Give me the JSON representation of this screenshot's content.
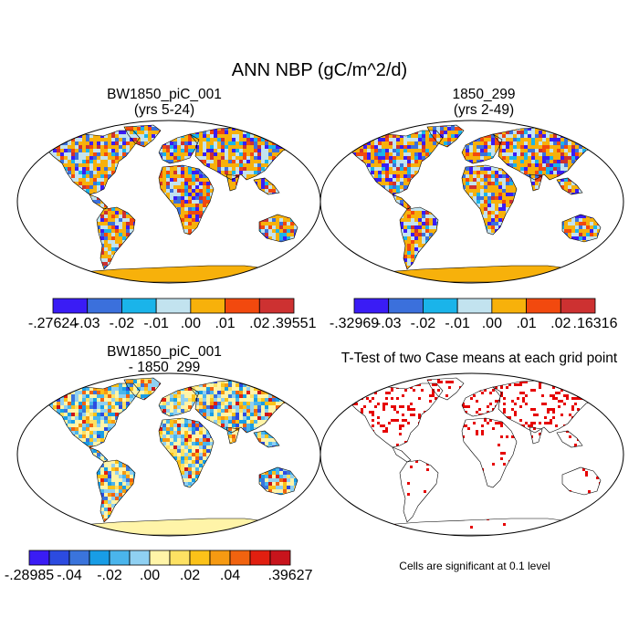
{
  "figure": {
    "title": "ANN NBP (gC/m^2/d)"
  },
  "panels": [
    {
      "id": "case1",
      "title_line1": "BW1850_piC_001",
      "title_line2": "(yrs 5-24)",
      "colorbar": {
        "colors": [
          "#3a1cf5",
          "#3b70dc",
          "#1ab4ea",
          "#c2e3ef",
          "#f7b10b",
          "#f2490e",
          "#cd3131"
        ],
        "labels": [
          "-.27624",
          "-.03",
          "-.02",
          "-.01",
          ".00",
          ".01",
          ".02",
          ".39551"
        ]
      },
      "antarctica_color": "#f7b10b"
    },
    {
      "id": "case2",
      "title_line1": "1850_299",
      "title_line2": "(yrs 2-49)",
      "colorbar": {
        "colors": [
          "#3a1cf5",
          "#3b70dc",
          "#1ab4ea",
          "#c2e3ef",
          "#f7b10b",
          "#f2490e",
          "#cd3131"
        ],
        "labels": [
          "-.32969",
          "-.03",
          "-.02",
          "-.01",
          ".00",
          ".01",
          ".02",
          ".16316"
        ]
      },
      "antarctica_color": "#f7b10b"
    },
    {
      "id": "difference",
      "title_line1": "BW1850_piC_001",
      "title_line2": "- 1850_299",
      "colorbar": {
        "colors": [
          "#3a1cf5",
          "#2c4be0",
          "#3a74dc",
          "#189de6",
          "#4ab5ec",
          "#8fd0f2",
          "#fff4a8",
          "#fde163",
          "#fbc219",
          "#f69a12",
          "#f1630f",
          "#e11f10",
          "#c8141c"
        ],
        "labels": [
          "-.28985",
          "-.04",
          "-.02",
          ".00",
          ".02",
          ".04",
          ".39627"
        ]
      },
      "antarctica_color": "#fff4a8"
    },
    {
      "id": "ttest",
      "title_line1": "T-Test of two Case means at each grid point",
      "significance_color": "#e60000",
      "note": "Cells are significant at 0.1 level"
    }
  ]
}
